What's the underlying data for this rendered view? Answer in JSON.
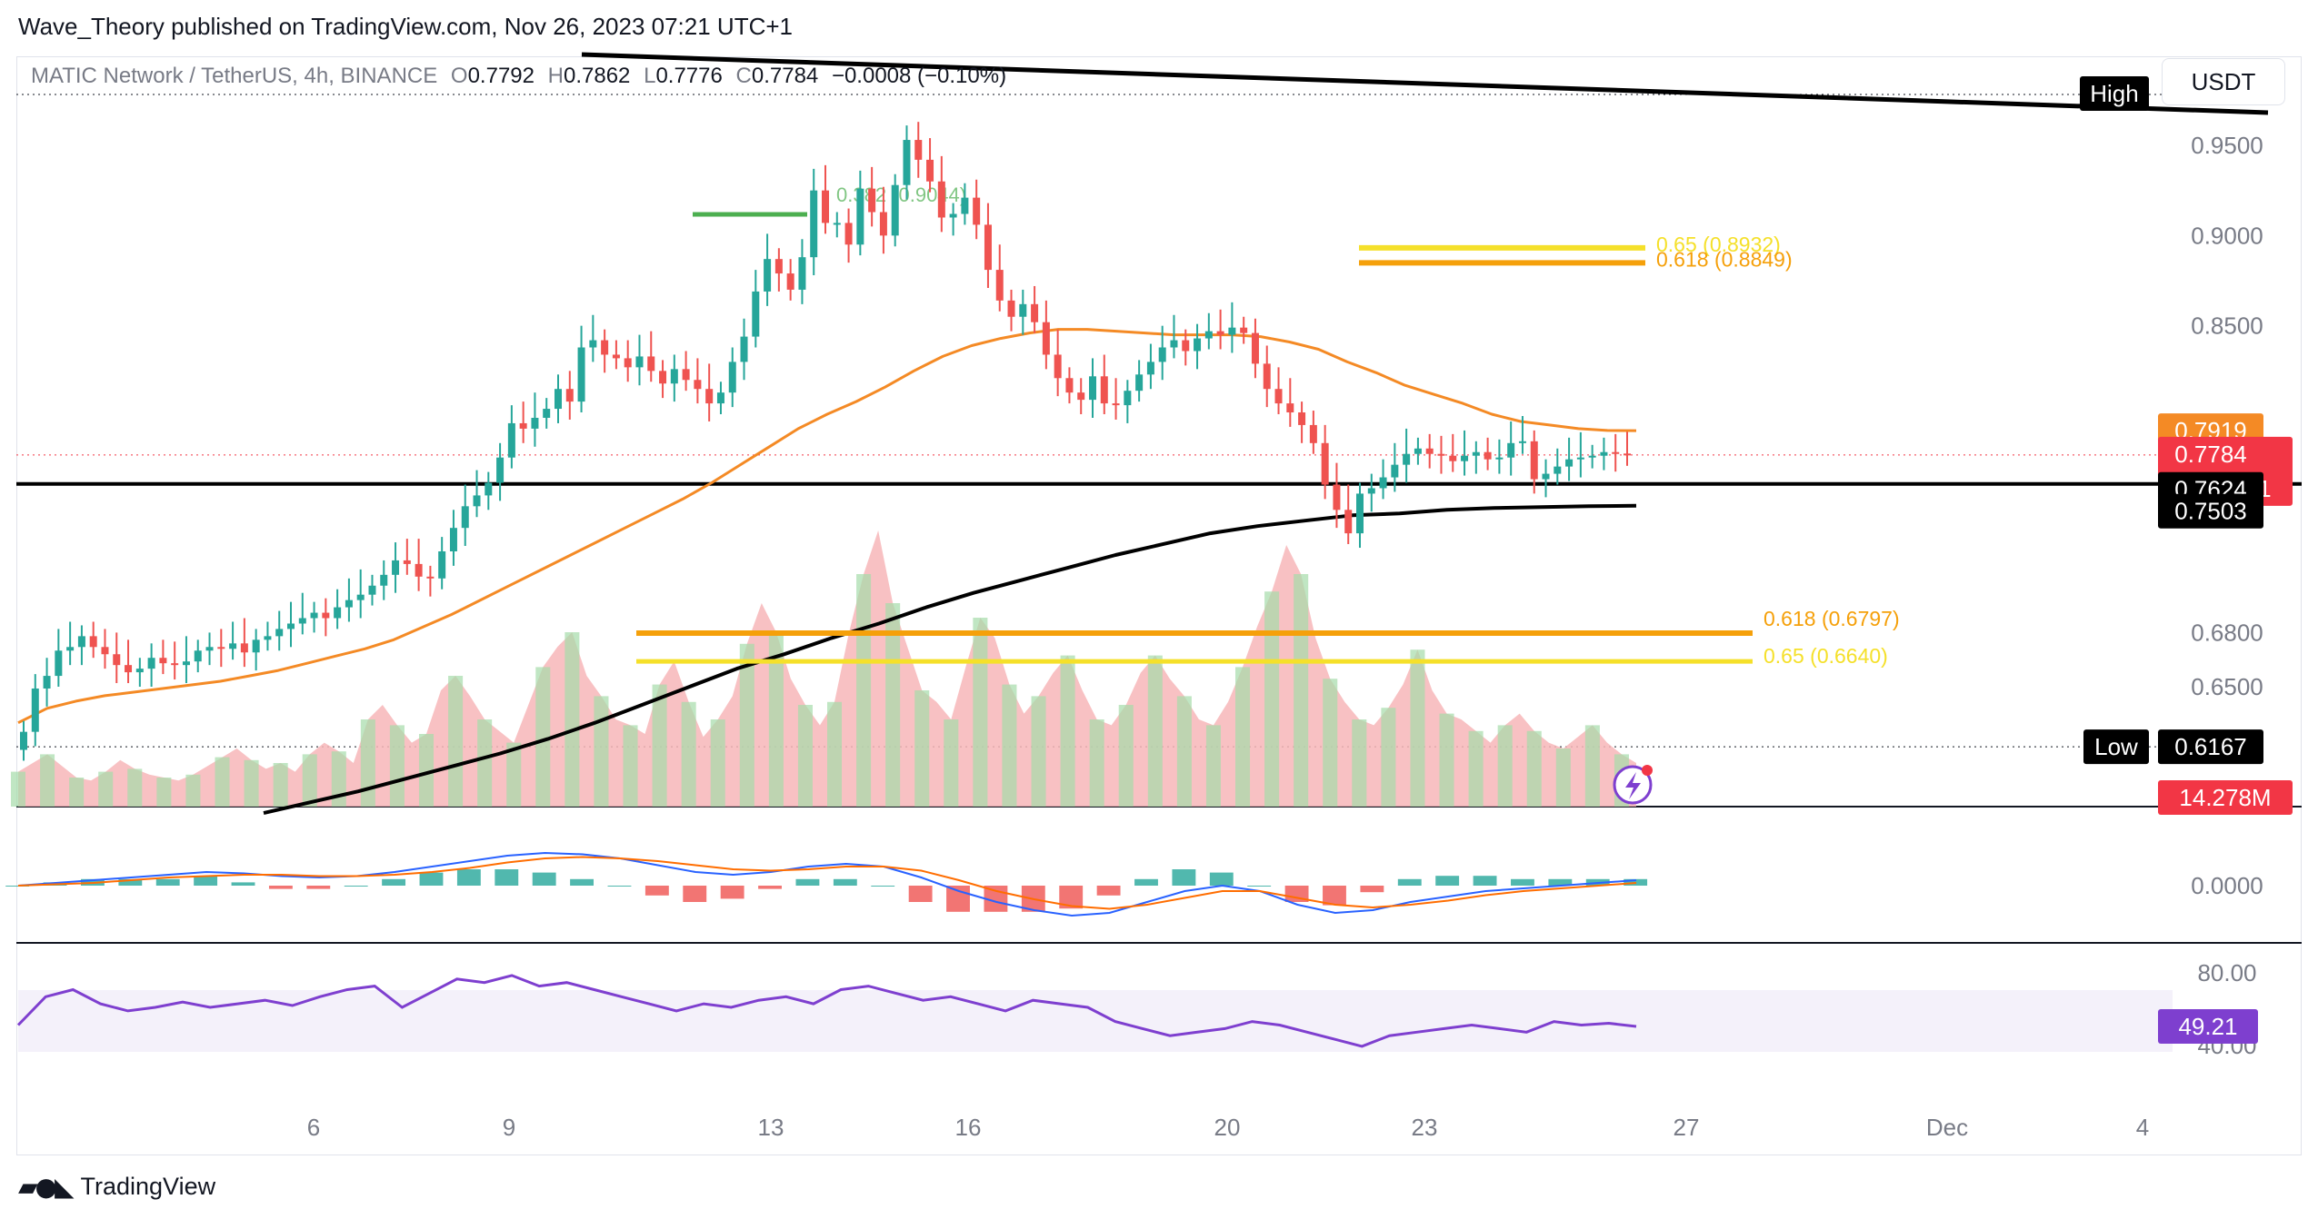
{
  "header": {
    "published": "Wave_Theory published on TradingView.com, Nov 26, 2023 07:21 UTC+1"
  },
  "legend": {
    "symbol": "MATIC Network / TetherUS, 4h, BINANCE",
    "o_label": "O",
    "o": "0.7792",
    "h_label": "H",
    "h": "0.7862",
    "l_label": "L",
    "l": "0.7776",
    "c_label": "C",
    "c": "0.7784",
    "change": "−0.0008 (−0.10%)"
  },
  "toolbar": {
    "currency_button": "USDT"
  },
  "footer": {
    "logo_text": "TradingView"
  },
  "colors": {
    "up": "#26a69a",
    "down": "#ef5350",
    "ema50": "#f48a25",
    "ema200": "#000000",
    "fib_orange": "#f5a00a",
    "fib_yellow": "#f5e02a",
    "rsi": "#7e3fcf",
    "macd_line": "#2962ff",
    "signal_line": "#ff6d00",
    "price_label": "#f23645"
  },
  "chart_data": [
    {
      "type": "candlestick",
      "ylim": [
        0.6167,
        0.98
      ],
      "y_ticks": [
        "0.9500",
        "0.9000",
        "0.8500",
        "0.6800",
        "0.6500"
      ],
      "x_ticks": [
        "6",
        "9",
        "13",
        "16",
        "20",
        "23",
        "27",
        "Dec",
        "4"
      ],
      "closes": [
        0.625,
        0.649,
        0.656,
        0.67,
        0.672,
        0.678,
        0.672,
        0.668,
        0.662,
        0.658,
        0.66,
        0.666,
        0.663,
        0.662,
        0.664,
        0.67,
        0.672,
        0.671,
        0.674,
        0.669,
        0.676,
        0.678,
        0.682,
        0.685,
        0.688,
        0.691,
        0.688,
        0.694,
        0.698,
        0.701,
        0.706,
        0.712,
        0.72,
        0.718,
        0.711,
        0.71,
        0.725,
        0.738,
        0.75,
        0.756,
        0.763,
        0.777,
        0.796,
        0.793,
        0.799,
        0.804,
        0.815,
        0.808,
        0.838,
        0.842,
        0.834,
        0.832,
        0.827,
        0.833,
        0.825,
        0.818,
        0.826,
        0.82,
        0.815,
        0.807,
        0.813,
        0.83,
        0.844,
        0.869,
        0.887,
        0.879,
        0.87,
        0.888,
        0.925,
        0.907,
        0.907,
        0.895,
        0.926,
        0.913,
        0.9,
        0.928,
        0.953,
        0.942,
        0.93,
        0.91,
        0.912,
        0.921,
        0.906,
        0.881,
        0.864,
        0.855,
        0.862,
        0.852,
        0.834,
        0.821,
        0.813,
        0.809,
        0.822,
        0.807,
        0.806,
        0.814,
        0.823,
        0.83,
        0.838,
        0.842,
        0.836,
        0.843,
        0.847,
        0.845,
        0.849,
        0.846,
        0.829,
        0.815,
        0.807,
        0.802,
        0.795,
        0.785,
        0.762,
        0.748,
        0.735,
        0.757,
        0.76,
        0.766,
        0.773,
        0.779,
        0.782,
        0.779,
        0.778,
        0.775,
        0.778,
        0.78,
        0.776,
        0.777,
        0.785,
        0.786,
        0.765,
        0.768,
        0.772,
        0.776,
        0.777,
        0.778,
        0.78,
        0.7792,
        0.7784
      ],
      "ema50": [
        0.63,
        0.638,
        0.642,
        0.645,
        0.647,
        0.649,
        0.651,
        0.653,
        0.656,
        0.659,
        0.663,
        0.667,
        0.671,
        0.676,
        0.683,
        0.69,
        0.698,
        0.706,
        0.714,
        0.722,
        0.73,
        0.738,
        0.746,
        0.754,
        0.763,
        0.773,
        0.783,
        0.793,
        0.801,
        0.808,
        0.816,
        0.825,
        0.833,
        0.839,
        0.843,
        0.846,
        0.848,
        0.848,
        0.847,
        0.846,
        0.845,
        0.845,
        0.845,
        0.844,
        0.841,
        0.837,
        0.83,
        0.824,
        0.817,
        0.812,
        0.807,
        0.801,
        0.797,
        0.795,
        0.793,
        0.792,
        0.7919
      ],
      "ema200": [
        0.58,
        0.586,
        0.592,
        0.599,
        0.606,
        0.613,
        0.621,
        0.63,
        0.64,
        0.65,
        0.66,
        0.668,
        0.677,
        0.685,
        0.694,
        0.702,
        0.709,
        0.716,
        0.723,
        0.729,
        0.735,
        0.739,
        0.742,
        0.745,
        0.746,
        0.748,
        0.749,
        0.7495,
        0.75,
        0.7503
      ],
      "volume_bars": [
        12,
        15,
        18,
        14,
        10,
        9,
        12,
        16,
        13,
        11,
        10,
        9,
        11,
        14,
        17,
        20,
        16,
        13,
        15,
        12,
        18,
        22,
        19,
        15,
        30,
        35,
        28,
        22,
        25,
        40,
        45,
        38,
        30,
        26,
        22,
        35,
        48,
        55,
        60,
        45,
        38,
        30,
        28,
        25,
        42,
        50,
        36,
        24,
        30,
        38,
        56,
        70,
        60,
        44,
        35,
        28,
        36,
        60,
        80,
        95,
        70,
        55,
        40,
        36,
        30,
        48,
        65,
        58,
        42,
        32,
        38,
        46,
        52,
        40,
        30,
        28,
        35,
        46,
        52,
        44,
        38,
        30,
        28,
        36,
        48,
        62,
        74,
        90,
        80,
        58,
        44,
        36,
        30,
        28,
        34,
        42,
        54,
        40,
        32,
        30,
        26,
        22,
        28,
        32,
        26,
        22,
        20,
        24,
        28,
        22,
        18,
        15
      ],
      "annotations": [
        "0.65 (0.8932)",
        "0.618 (0.8849)",
        "0.618 (0.6797)",
        "0.65 (0.6640)",
        "0.382 (0.9044)"
      ],
      "fib_levels": [
        {
          "label": "0.65 (0.8932)",
          "value": 0.8932
        },
        {
          "label": "0.618 (0.8849)",
          "value": 0.8849
        },
        {
          "label": "0.618 (0.6797)",
          "value": 0.6797
        },
        {
          "label": "0.65 (0.6640)",
          "value": 0.664
        }
      ],
      "price_labels": {
        "high_tag": "High",
        "low_tag": "Low",
        "low_value": "0.6167",
        "ema50_value": "0.7919",
        "last_price": "0.7784",
        "countdown": "01:38:01",
        "support_value": "0.7624",
        "ema200_value": "0.7503",
        "volume": "14.278M"
      }
    },
    {
      "type": "macd",
      "y_ticks": [
        "0.0000"
      ],
      "macd": [
        0.0,
        0.002,
        0.004,
        0.006,
        0.008,
        0.01,
        0.009,
        0.007,
        0.006,
        0.007,
        0.01,
        0.014,
        0.018,
        0.022,
        0.024,
        0.023,
        0.02,
        0.015,
        0.01,
        0.008,
        0.01,
        0.014,
        0.016,
        0.014,
        0.006,
        -0.004,
        -0.012,
        -0.018,
        -0.022,
        -0.02,
        -0.012,
        -0.004,
        0.0,
        -0.004,
        -0.014,
        -0.02,
        -0.018,
        -0.012,
        -0.008,
        -0.004,
        -0.002,
        0.0,
        0.002,
        0.004
      ],
      "signal": [
        0.0,
        0.001,
        0.002,
        0.004,
        0.006,
        0.007,
        0.008,
        0.008,
        0.007,
        0.007,
        0.008,
        0.01,
        0.013,
        0.017,
        0.02,
        0.021,
        0.02,
        0.018,
        0.015,
        0.012,
        0.011,
        0.012,
        0.014,
        0.014,
        0.011,
        0.004,
        -0.004,
        -0.01,
        -0.015,
        -0.017,
        -0.014,
        -0.009,
        -0.004,
        -0.004,
        -0.009,
        -0.014,
        -0.016,
        -0.014,
        -0.011,
        -0.007,
        -0.004,
        -0.002,
        0.0,
        0.002
      ]
    },
    {
      "type": "rsi",
      "y_ticks": [
        "80.00",
        "40.00"
      ],
      "last_value": "49.21",
      "values": [
        50,
        66,
        70,
        62,
        58,
        60,
        63,
        60,
        62,
        64,
        61,
        66,
        70,
        72,
        60,
        68,
        76,
        74,
        78,
        72,
        74,
        70,
        66,
        62,
        58,
        62,
        60,
        64,
        66,
        62,
        70,
        72,
        68,
        64,
        66,
        62,
        58,
        64,
        62,
        60,
        52,
        48,
        44,
        46,
        48,
        52,
        50,
        46,
        42,
        38,
        44,
        46,
        48,
        50,
        48,
        46,
        52,
        50,
        51,
        49.21
      ]
    }
  ]
}
